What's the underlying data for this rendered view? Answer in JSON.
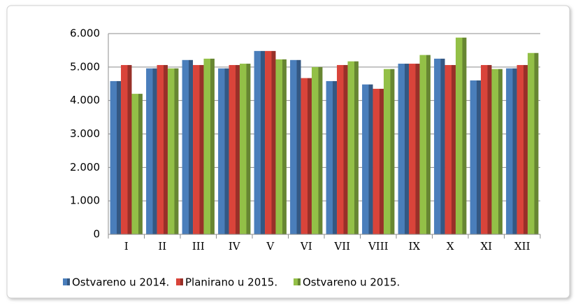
{
  "chart_data": {
    "type": "bar",
    "categories": [
      "I",
      "II",
      "III",
      "IV",
      "V",
      "VI",
      "VII",
      "VIII",
      "IX",
      "X",
      "XI",
      "XII"
    ],
    "series": [
      {
        "name": "Ostvareno u 2014.",
        "color": "#4a7ebb",
        "values": [
          4580,
          4960,
          5210,
          4960,
          5480,
          5210,
          4580,
          4480,
          5100,
          5250,
          4600,
          4960
        ]
      },
      {
        "name": "Planirano u 2015.",
        "color": "#d9443a",
        "values": [
          5060,
          5060,
          5060,
          5060,
          5480,
          4670,
          5060,
          4350,
          5100,
          5060,
          5060,
          5060
        ]
      },
      {
        "name": "Ostvareno u 2015.",
        "color": "#93c047",
        "values": [
          4200,
          4960,
          5250,
          5100,
          5230,
          5000,
          5170,
          4940,
          5360,
          5880,
          4940,
          5420
        ]
      }
    ],
    "ylim": [
      0,
      6000
    ],
    "yticks": [
      0,
      {
        "value": 1000,
        "label": "1.000"
      },
      {
        "value": 2000,
        "label": "2.000"
      },
      {
        "value": 3000,
        "label": "3.000"
      },
      {
        "value": 4000,
        "label": "4.000"
      },
      {
        "value": 5000,
        "label": "5.000"
      },
      {
        "value": 6000,
        "label": "6.000"
      }
    ],
    "grid": true,
    "legend": "bottom"
  }
}
